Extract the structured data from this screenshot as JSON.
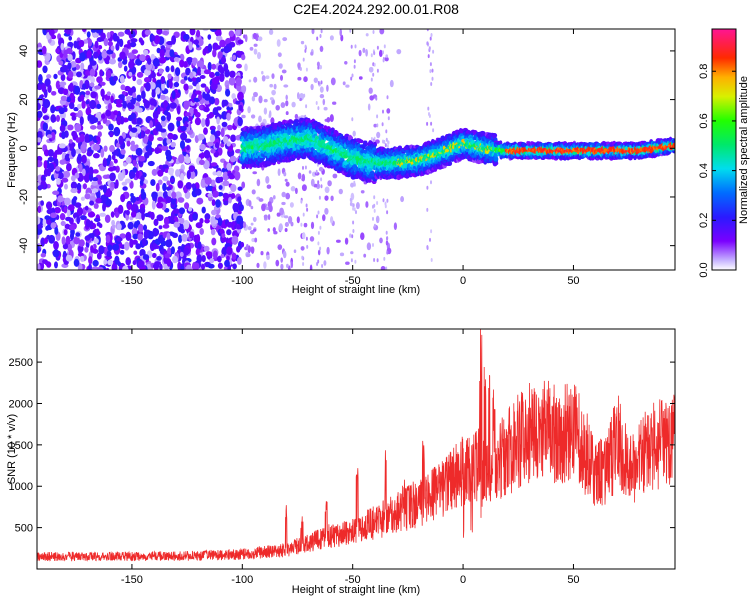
{
  "title": "C2E4.2024.292.00.01.R08",
  "chart_data": [
    {
      "type": "heatmap",
      "xlabel": "Height of straight line (km)",
      "ylabel": "Frequency (Hz)",
      "xlim": [
        -193,
        96
      ],
      "ylim": [
        -50,
        49
      ],
      "xticks": [
        -150,
        -100,
        -50,
        0,
        50
      ],
      "yticks": [
        -40,
        -20,
        0,
        20,
        40
      ],
      "grid": false,
      "colorbar": {
        "label": "Normalized spectral amplitude",
        "range": [
          0,
          0.97
        ],
        "ticks": [
          "0.0",
          "0.2",
          "0.4",
          "0.6",
          "0.8"
        ],
        "tick_values": [
          0.0,
          0.2,
          0.4,
          0.6,
          0.8
        ],
        "colormap": "rainbow (purple-blue-cyan-green-yellow-red-magenta)"
      },
      "ridge": {
        "description": "center frequency of main signal band vs height",
        "x": [
          -100,
          -90,
          -80,
          -70,
          -60,
          -50,
          -40,
          -30,
          -20,
          -10,
          0,
          10,
          20,
          40,
          60,
          80,
          95
        ],
        "y": [
          0,
          1,
          3,
          4,
          0,
          -4,
          -6,
          -6,
          -5,
          -2,
          2,
          0,
          -1,
          -1,
          -1,
          -1,
          1
        ]
      }
    },
    {
      "type": "line",
      "xlabel": "Height of straight line (km)",
      "ylabel": "SNR (10 * v/v)",
      "xlim": [
        -193,
        96
      ],
      "ylim": [
        0,
        2900
      ],
      "xticks": [
        -150,
        -100,
        -50,
        0,
        50
      ],
      "yticks": [
        500,
        1000,
        1500,
        2000,
        2500
      ],
      "grid": false,
      "series": [
        {
          "color": "#ee2a2a",
          "description": "noisy SNR trace; mean envelope below",
          "x": [
            -193,
            -150,
            -120,
            -100,
            -80,
            -70,
            -60,
            -50,
            -40,
            -30,
            -20,
            -10,
            0,
            5,
            10,
            15,
            20,
            25,
            30,
            35,
            40,
            45,
            50,
            55,
            60,
            65,
            70,
            75,
            80,
            85,
            90,
            96
          ],
          "y": [
            150,
            150,
            160,
            180,
            230,
            320,
            400,
            450,
            560,
            680,
            800,
            950,
            1200,
            1350,
            1100,
            1250,
            1400,
            1550,
            1650,
            1680,
            1650,
            1620,
            1650,
            1450,
            1150,
            1150,
            1600,
            1150,
            1350,
            1450,
            1500,
            1550
          ]
        }
      ],
      "spikes": {
        "x": [
          -80,
          -73,
          -62,
          -48,
          -35,
          -27,
          -18,
          4,
          8,
          10,
          12,
          14,
          20
        ],
        "y": [
          800,
          650,
          830,
          1300,
          1450,
          1100,
          1650,
          1850,
          2900,
          2600,
          2900,
          2200,
          1800
        ]
      }
    }
  ]
}
